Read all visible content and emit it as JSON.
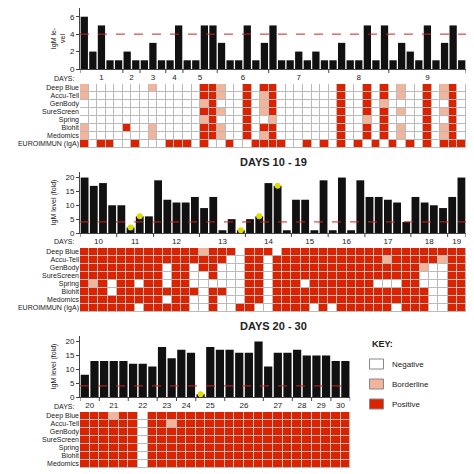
{
  "chart_data": [
    {
      "type": "bar",
      "y_label": "IgM le-\nvel",
      "x_label": "DAYS:",
      "values": [
        6,
        2,
        5,
        1,
        1,
        2,
        1,
        1,
        3,
        1,
        1,
        5,
        1,
        1,
        5,
        5,
        3,
        1,
        1,
        5,
        1,
        3,
        5,
        1,
        1,
        2,
        1,
        2,
        1,
        1,
        3,
        1,
        1,
        5,
        1,
        5,
        1,
        3,
        2,
        1,
        5,
        1,
        3,
        5,
        1
      ],
      "color": "#111111",
      "highlighted": {
        "indices": [],
        "color": "#dddd00",
        "marker": "circle"
      },
      "reference_line": {
        "value": 4,
        "color": "#cc2222",
        "line_style": "dashed"
      },
      "ylim": [
        0,
        7
      ],
      "yticks": [
        0,
        2,
        4,
        6
      ],
      "grid": false,
      "day_labels": [
        "1",
        "2",
        "3",
        "4",
        "5",
        "6",
        "7",
        "8",
        "9"
      ],
      "day_boundaries": [
        0,
        5,
        7,
        10,
        12,
        16,
        22,
        29,
        36,
        45
      ],
      "heatmap": {
        "rows": [
          "Deep Blue",
          "Accu-Tell",
          "GenBody",
          "SureScreen",
          "Spring",
          "Biohit",
          "Medomics"
        ],
        "cells": [
          [
            1,
            0,
            0,
            0,
            0,
            0,
            0,
            0,
            1,
            0,
            0,
            0,
            0,
            0,
            2,
            2,
            1,
            0,
            0,
            2,
            0,
            2,
            2,
            0,
            0,
            0,
            0,
            0,
            0,
            0,
            2,
            0,
            0,
            2,
            0,
            2,
            0,
            1,
            0,
            0,
            2,
            0,
            1,
            2,
            0
          ],
          [
            1,
            0,
            0,
            0,
            0,
            0,
            0,
            0,
            0,
            0,
            0,
            0,
            0,
            0,
            2,
            2,
            1,
            0,
            0,
            2,
            0,
            1,
            2,
            0,
            0,
            0,
            0,
            0,
            0,
            0,
            2,
            0,
            0,
            2,
            0,
            2,
            0,
            1,
            0,
            0,
            2,
            0,
            1,
            2,
            0
          ],
          [
            0,
            0,
            0,
            0,
            0,
            0,
            0,
            0,
            0,
            0,
            0,
            0,
            0,
            0,
            1,
            2,
            0,
            0,
            0,
            2,
            0,
            1,
            2,
            0,
            0,
            0,
            0,
            0,
            0,
            0,
            2,
            0,
            0,
            2,
            0,
            1,
            0,
            0,
            0,
            0,
            2,
            0,
            0,
            2,
            0
          ],
          [
            0,
            0,
            0,
            0,
            0,
            0,
            0,
            0,
            0,
            0,
            0,
            0,
            0,
            0,
            2,
            2,
            1,
            0,
            0,
            2,
            0,
            1,
            2,
            0,
            0,
            0,
            0,
            0,
            0,
            0,
            2,
            0,
            0,
            2,
            0,
            2,
            0,
            1,
            0,
            0,
            2,
            0,
            1,
            2,
            0
          ],
          [
            0,
            0,
            0,
            0,
            0,
            0,
            0,
            0,
            0,
            0,
            0,
            0,
            0,
            0,
            1,
            2,
            0,
            0,
            0,
            2,
            0,
            0,
            1,
            0,
            0,
            0,
            0,
            0,
            0,
            0,
            2,
            0,
            0,
            1,
            0,
            2,
            0,
            0,
            0,
            0,
            2,
            0,
            0,
            2,
            0
          ],
          [
            1,
            0,
            0,
            0,
            0,
            2,
            0,
            0,
            1,
            0,
            0,
            0,
            0,
            0,
            2,
            2,
            1,
            0,
            0,
            2,
            0,
            2,
            2,
            0,
            0,
            0,
            0,
            0,
            0,
            0,
            2,
            0,
            0,
            2,
            0,
            2,
            0,
            1,
            0,
            0,
            2,
            0,
            1,
            2,
            0
          ],
          [
            1,
            0,
            0,
            0,
            0,
            0,
            0,
            0,
            1,
            0,
            0,
            0,
            0,
            0,
            2,
            2,
            1,
            0,
            0,
            2,
            0,
            1,
            2,
            0,
            0,
            0,
            0,
            0,
            0,
            0,
            2,
            0,
            0,
            2,
            0,
            2,
            0,
            1,
            0,
            0,
            2,
            0,
            1,
            2,
            0
          ]
        ]
      },
      "euroimmun": {
        "label": "EUROIMMUN (IgA)",
        "cells": [
          2,
          0,
          2,
          2,
          0,
          0,
          2,
          0,
          0,
          0,
          2,
          2,
          2,
          0,
          2,
          0,
          0,
          2,
          0,
          0,
          2,
          2,
          2,
          2,
          0,
          0,
          2,
          0,
          2,
          0,
          2,
          0,
          2,
          0,
          2,
          0,
          2,
          0,
          2,
          0,
          2,
          0,
          2,
          2,
          2
        ]
      }
    },
    {
      "type": "bar",
      "title": "DAYS 10 - 19",
      "y_label": "IgM level (fold)",
      "x_label": "DAYS:",
      "values": [
        20,
        17,
        18,
        10,
        10,
        2,
        6,
        6,
        19,
        12,
        11,
        11,
        13,
        9,
        13,
        1,
        5,
        1,
        5,
        6,
        18,
        17,
        1,
        12,
        12,
        1,
        19,
        1,
        20,
        1,
        19,
        13,
        13,
        12,
        11,
        4,
        13,
        11,
        10,
        9,
        13,
        20
      ],
      "color": "#111111",
      "highlighted": {
        "indices": [
          5,
          6,
          17,
          19,
          21
        ],
        "color": "#dddd00",
        "marker": "circle"
      },
      "reference_line": {
        "value": 4,
        "color": "#cc2222",
        "line_style": "dashed"
      },
      "ylim": [
        0,
        22
      ],
      "yticks": [
        0,
        5,
        10,
        15,
        20
      ],
      "grid": false,
      "day_labels": [
        "10",
        "11",
        "12",
        "13",
        "14",
        "15",
        "16",
        "17",
        "18",
        "19"
      ],
      "day_boundaries": [
        0,
        4,
        8,
        13,
        18,
        23,
        27,
        31,
        36,
        40,
        42
      ],
      "heatmap": {
        "rows": [
          "Deep Blue",
          "Accu-Tell",
          "GenBody",
          "SureScreen",
          "Spring",
          "Biohit",
          "Medomics"
        ],
        "cells": [
          [
            2,
            2,
            2,
            2,
            2,
            2,
            2,
            2,
            2,
            2,
            2,
            2,
            2,
            1,
            2,
            2,
            2,
            0,
            2,
            2,
            2,
            0,
            2,
            2,
            2,
            2,
            2,
            2,
            2,
            2,
            2,
            2,
            2,
            2,
            2,
            2,
            2,
            2,
            2,
            2,
            2,
            2
          ],
          [
            2,
            2,
            2,
            2,
            2,
            2,
            2,
            2,
            2,
            2,
            2,
            2,
            2,
            2,
            2,
            2,
            0,
            0,
            2,
            2,
            0,
            2,
            2,
            2,
            2,
            2,
            2,
            2,
            2,
            2,
            2,
            2,
            2,
            1,
            2,
            2,
            2,
            2,
            2,
            1,
            2,
            2
          ],
          [
            2,
            2,
            2,
            2,
            2,
            2,
            2,
            2,
            2,
            0,
            2,
            2,
            0,
            2,
            2,
            0,
            0,
            0,
            2,
            2,
            0,
            2,
            2,
            2,
            2,
            2,
            2,
            2,
            2,
            2,
            2,
            2,
            2,
            2,
            2,
            2,
            2,
            1,
            0,
            0,
            2,
            2
          ],
          [
            2,
            2,
            2,
            2,
            2,
            2,
            2,
            2,
            2,
            0,
            2,
            2,
            0,
            0,
            2,
            0,
            0,
            0,
            2,
            2,
            0,
            2,
            2,
            2,
            2,
            2,
            2,
            2,
            2,
            2,
            2,
            2,
            2,
            2,
            2,
            2,
            2,
            0,
            0,
            0,
            2,
            2
          ],
          [
            2,
            1,
            2,
            0,
            2,
            2,
            0,
            2,
            2,
            0,
            2,
            2,
            0,
            0,
            0,
            0,
            0,
            0,
            2,
            2,
            0,
            2,
            2,
            2,
            0,
            2,
            2,
            2,
            2,
            2,
            2,
            2,
            0,
            0,
            0,
            2,
            2,
            0,
            0,
            0,
            2,
            2
          ],
          [
            2,
            2,
            2,
            0,
            2,
            2,
            2,
            2,
            2,
            2,
            2,
            2,
            2,
            0,
            2,
            2,
            0,
            0,
            2,
            2,
            0,
            2,
            2,
            2,
            2,
            2,
            2,
            2,
            2,
            2,
            2,
            2,
            2,
            2,
            2,
            2,
            2,
            2,
            0,
            0,
            2,
            2
          ],
          [
            2,
            2,
            2,
            2,
            2,
            2,
            2,
            2,
            2,
            0,
            2,
            2,
            0,
            0,
            2,
            0,
            0,
            0,
            2,
            2,
            0,
            2,
            2,
            2,
            2,
            2,
            2,
            2,
            2,
            2,
            2,
            2,
            2,
            2,
            2,
            2,
            2,
            2,
            0,
            0,
            2,
            2
          ]
        ]
      },
      "euroimmun": {
        "label": "EUROIMMUN (IgA)",
        "cells": [
          2,
          2,
          2,
          2,
          2,
          2,
          0,
          2,
          2,
          2,
          2,
          2,
          0,
          0,
          2,
          0,
          0,
          2,
          2,
          0,
          0,
          2,
          2,
          2,
          2,
          0,
          2,
          0,
          2,
          2,
          2,
          2,
          2,
          2,
          0,
          2,
          2,
          2,
          0,
          0,
          2,
          2
        ]
      }
    },
    {
      "type": "bar",
      "title": "DAYS 20 - 30",
      "y_label": "IgM level (fold)",
      "x_label": "DAYS:",
      "values": [
        8,
        13,
        13,
        13,
        13,
        12,
        12,
        11,
        18,
        14,
        17,
        16,
        1,
        18,
        17,
        17,
        16,
        16,
        20,
        11,
        16,
        16,
        17,
        15,
        15,
        15,
        13,
        13
      ],
      "color": "#111111",
      "highlighted": {
        "indices": [
          12
        ],
        "color": "#dddd00",
        "marker": "circle"
      },
      "reference_line": {
        "value": 4,
        "color": "#cc2222",
        "line_style": "dashed"
      },
      "ylim": [
        0,
        22
      ],
      "yticks": [
        0,
        5,
        10,
        15,
        20
      ],
      "grid": false,
      "day_labels": [
        "20",
        "21",
        "22",
        "23",
        "24",
        "25",
        "26",
        "27",
        "28",
        "29",
        "30"
      ],
      "day_boundaries": [
        0,
        2,
        5,
        8,
        10,
        12,
        15,
        19,
        22,
        24,
        26,
        28
      ],
      "heatmap": {
        "rows": [
          "Deep Blue",
          "Accu-Tell",
          "GenBody",
          "SureScreen",
          "Spring",
          "Biohit",
          "Medomics"
        ],
        "cells": [
          [
            2,
            2,
            2,
            1,
            2,
            2,
            0,
            2,
            2,
            2,
            2,
            2,
            2,
            2,
            2,
            2,
            2,
            2,
            2,
            2,
            2,
            2,
            2,
            2,
            2,
            2,
            2,
            2
          ],
          [
            2,
            2,
            2,
            2,
            2,
            2,
            0,
            2,
            2,
            1,
            2,
            2,
            2,
            2,
            2,
            2,
            2,
            2,
            2,
            2,
            2,
            2,
            2,
            2,
            2,
            2,
            2,
            2
          ],
          [
            2,
            2,
            2,
            2,
            2,
            2,
            0,
            2,
            2,
            2,
            2,
            2,
            2,
            2,
            2,
            2,
            2,
            2,
            2,
            2,
            2,
            2,
            2,
            2,
            2,
            2,
            2,
            2
          ],
          [
            2,
            2,
            2,
            2,
            2,
            2,
            0,
            2,
            2,
            2,
            2,
            2,
            2,
            2,
            2,
            2,
            2,
            2,
            2,
            2,
            2,
            2,
            2,
            2,
            2,
            2,
            2,
            2
          ],
          [
            2,
            2,
            2,
            2,
            2,
            2,
            0,
            2,
            2,
            2,
            2,
            2,
            2,
            2,
            2,
            2,
            2,
            2,
            2,
            2,
            2,
            2,
            2,
            2,
            2,
            2,
            2,
            2
          ],
          [
            2,
            2,
            2,
            2,
            2,
            2,
            0,
            2,
            2,
            2,
            2,
            2,
            2,
            2,
            2,
            2,
            2,
            2,
            2,
            2,
            2,
            2,
            2,
            2,
            2,
            2,
            2,
            2
          ],
          [
            2,
            2,
            2,
            2,
            2,
            2,
            0,
            2,
            2,
            2,
            2,
            2,
            2,
            2,
            2,
            2,
            2,
            2,
            2,
            2,
            2,
            2,
            2,
            2,
            2,
            2,
            2,
            2
          ]
        ]
      },
      "key": {
        "title": "KEY:",
        "levels": [
          0,
          1,
          2
        ],
        "labels": [
          "Negative",
          "Borderline",
          "Positive"
        ],
        "colors": [
          "#ffffff",
          "#f2b49a",
          "#dd2200"
        ]
      }
    }
  ]
}
